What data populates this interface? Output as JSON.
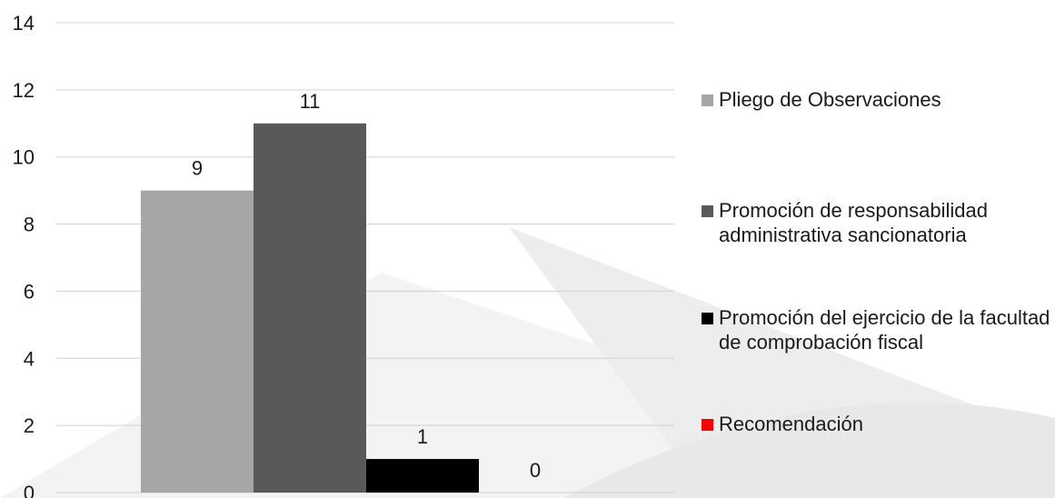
{
  "chart_data": {
    "type": "bar",
    "categories": [
      ""
    ],
    "series": [
      {
        "name": "Pliego de Observaciones",
        "values": [
          9
        ],
        "color": "#a6a6a6"
      },
      {
        "name": "Promoción de responsabilidad administrativa sancionatoria",
        "values": [
          11
        ],
        "color": "#595959"
      },
      {
        "name": "Promoción del ejercicio de la facultad de comprobación fiscal",
        "values": [
          1
        ],
        "color": "#000000"
      },
      {
        "name": "Recomendación",
        "values": [
          0
        ],
        "color": "#ff0000"
      }
    ],
    "ylim": [
      0,
      14
    ],
    "yticks": [
      "0",
      "2",
      "4",
      "6",
      "8",
      "10",
      "12",
      "14"
    ],
    "data_labels": [
      "9",
      "11",
      "1",
      "0"
    ],
    "grid": true,
    "legend_position": "right"
  }
}
